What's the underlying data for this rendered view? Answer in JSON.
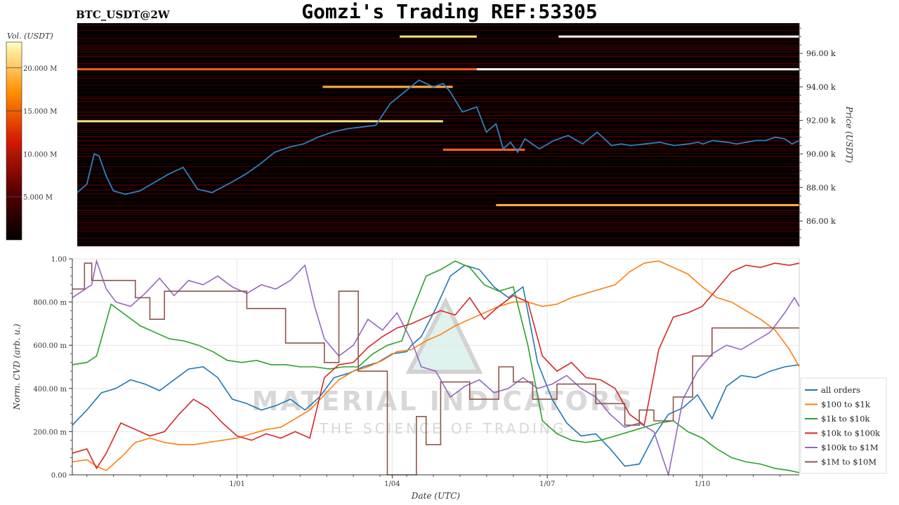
{
  "header": {
    "title": "Gomzi's Trading REF:53305",
    "ticker": "BTC_USDT@2W"
  },
  "colors": {
    "heatmap_bg": "#000000",
    "price_line": "#2f7fc1",
    "grid": "#e6e6e6"
  },
  "watermark": {
    "line1": "MATERIAL INDICATORS",
    "line2": "THE SCIENCE OF TRADING"
  },
  "chart_data": [
    {
      "type": "heatmap",
      "ylabel": "Price (USDT)",
      "ylim": [
        84500,
        97800
      ],
      "yticks": [
        86000,
        88000,
        90000,
        92000,
        94000,
        96000
      ],
      "ytick_labels": [
        "86.00 k",
        "88.00 k",
        "90.00 k",
        "92.00 k",
        "94.00 k",
        "96.00 k"
      ],
      "colorbar": {
        "label": "Vol. (USDT)",
        "range": [
          0,
          23000000
        ],
        "ticks": [
          5000000,
          10000000,
          15000000,
          20000000
        ],
        "tick_labels": [
          "5.000 M",
          "10.000 M",
          "15.000 M",
          "20.000 M"
        ]
      },
      "bright_levels": [
        {
          "price": 97000,
          "from_day": 10.0,
          "to_day": 15.0,
          "intensity": 1.0
        },
        {
          "price": 97000,
          "from_day": 6.7,
          "to_day": 8.3,
          "intensity": 0.9
        },
        {
          "price": 95050,
          "from_day": 0.0,
          "to_day": 15.0,
          "intensity": 0.55
        },
        {
          "price": 95050,
          "from_day": 8.3,
          "to_day": 15.0,
          "intensity": 1.0
        },
        {
          "price": 94000,
          "from_day": 5.1,
          "to_day": 7.8,
          "intensity": 0.75
        },
        {
          "price": 91950,
          "from_day": 0.0,
          "to_day": 7.6,
          "intensity": 0.85
        },
        {
          "price": 90250,
          "from_day": 7.6,
          "to_day": 9.3,
          "intensity": 0.6
        },
        {
          "price": 86950,
          "from_day": 8.7,
          "to_day": 15.0,
          "intensity": 0.75
        }
      ],
      "price_series": {
        "name": "BTC price",
        "x_days": [
          0,
          0.2,
          0.35,
          0.45,
          0.6,
          0.75,
          1.0,
          1.3,
          1.6,
          1.9,
          2.2,
          2.5,
          2.8,
          3.0,
          3.2,
          3.5,
          3.8,
          4.1,
          4.4,
          4.7,
          5.0,
          5.3,
          5.6,
          5.9,
          6.2,
          6.5,
          6.8,
          7.1,
          7.4,
          7.6,
          7.75,
          8.0,
          8.3,
          8.5,
          8.7,
          8.85,
          9.0,
          9.15,
          9.3,
          9.6,
          9.9,
          10.2,
          10.5,
          10.8,
          11.1,
          11.3,
          11.5,
          11.8,
          12.1,
          12.4,
          12.7,
          12.9,
          13.0,
          13.2,
          13.5,
          13.7,
          13.9,
          14.1,
          14.3,
          14.5,
          14.7,
          14.85,
          15.0
        ],
        "price": [
          87700,
          88200,
          90000,
          89900,
          88700,
          87800,
          87600,
          87800,
          88300,
          88800,
          89200,
          87900,
          87700,
          88000,
          88300,
          88800,
          89400,
          90100,
          90400,
          90600,
          91000,
          91300,
          91500,
          91600,
          91700,
          93000,
          93700,
          94400,
          94000,
          94200,
          93700,
          92500,
          92800,
          91300,
          91800,
          90300,
          90700,
          90100,
          90900,
          90300,
          90800,
          91100,
          90600,
          91300,
          90500,
          90600,
          90500,
          90600,
          90700,
          90500,
          90600,
          90700,
          90600,
          90800,
          90700,
          90600,
          90700,
          90800,
          90800,
          91000,
          90900,
          90600,
          90800
        ]
      }
    },
    {
      "type": "line",
      "xlabel": "Date (UTC)",
      "ylabel": "Norm. CVD (arb. u.)",
      "ylim": [
        0,
        1
      ],
      "yticks": [
        0,
        0.2,
        0.4,
        0.6,
        0.8,
        1.0
      ],
      "ytick_labels": [
        "0.00",
        "200.00 m",
        "400.00 m",
        "600.00 m",
        "800.00 m",
        "1.00"
      ],
      "xlim": [
        0,
        15
      ],
      "xticks": [
        3.4,
        6.6,
        9.8,
        13.0
      ],
      "xtick_labels": [
        "1/01",
        "1/04",
        "1/07",
        "1/10"
      ],
      "legend_position": "right",
      "series": [
        {
          "name": "all orders",
          "color": "#1f77b4",
          "x": [
            0,
            0.3,
            0.6,
            0.9,
            1.2,
            1.5,
            1.8,
            2.1,
            2.4,
            2.7,
            3.0,
            3.3,
            3.6,
            3.9,
            4.2,
            4.5,
            4.8,
            5.1,
            5.4,
            5.7,
            6.0,
            6.3,
            6.6,
            6.9,
            7.0,
            7.2,
            7.5,
            7.8,
            8.1,
            8.4,
            8.7,
            9.0,
            9.3,
            9.6,
            9.9,
            10.2,
            10.5,
            10.8,
            11.1,
            11.4,
            11.7,
            12.0,
            12.3,
            12.6,
            12.9,
            13.2,
            13.5,
            13.8,
            14.1,
            14.4,
            14.7,
            15.0
          ],
          "y": [
            0.23,
            0.3,
            0.38,
            0.4,
            0.44,
            0.42,
            0.39,
            0.44,
            0.49,
            0.5,
            0.45,
            0.35,
            0.33,
            0.3,
            0.32,
            0.35,
            0.3,
            0.36,
            0.45,
            0.47,
            0.5,
            0.52,
            0.56,
            0.57,
            0.6,
            0.64,
            0.77,
            0.92,
            0.97,
            0.95,
            0.87,
            0.82,
            0.87,
            0.52,
            0.35,
            0.24,
            0.18,
            0.19,
            0.12,
            0.04,
            0.05,
            0.18,
            0.28,
            0.31,
            0.37,
            0.26,
            0.41,
            0.46,
            0.45,
            0.48,
            0.5,
            0.51
          ]
        },
        {
          "name": "$100 to $1k",
          "color": "#ff7f0e",
          "x": [
            0,
            0.3,
            0.5,
            0.7,
            1.0,
            1.3,
            1.6,
            1.9,
            2.2,
            2.5,
            2.8,
            3.1,
            3.4,
            3.7,
            4.0,
            4.3,
            4.6,
            4.9,
            5.2,
            5.5,
            5.8,
            6.1,
            6.4,
            6.7,
            7.0,
            7.3,
            7.6,
            7.9,
            8.2,
            8.5,
            8.8,
            9.1,
            9.4,
            9.7,
            10.0,
            10.3,
            10.6,
            10.9,
            11.2,
            11.5,
            11.8,
            12.1,
            12.4,
            12.7,
            13.0,
            13.3,
            13.6,
            13.9,
            14.2,
            14.5,
            14.8,
            15.0
          ],
          "y": [
            0.06,
            0.07,
            0.04,
            0.02,
            0.08,
            0.15,
            0.17,
            0.15,
            0.14,
            0.14,
            0.15,
            0.16,
            0.17,
            0.19,
            0.21,
            0.22,
            0.26,
            0.3,
            0.37,
            0.44,
            0.48,
            0.5,
            0.53,
            0.57,
            0.58,
            0.62,
            0.65,
            0.69,
            0.72,
            0.75,
            0.78,
            0.8,
            0.8,
            0.78,
            0.79,
            0.82,
            0.84,
            0.86,
            0.88,
            0.94,
            0.98,
            0.99,
            0.96,
            0.93,
            0.87,
            0.82,
            0.8,
            0.76,
            0.72,
            0.67,
            0.58,
            0.5
          ]
        },
        {
          "name": "$1k to $10k",
          "color": "#2ca02c",
          "x": [
            0,
            0.3,
            0.5,
            0.6,
            0.8,
            1.1,
            1.4,
            1.7,
            2.0,
            2.3,
            2.6,
            2.9,
            3.2,
            3.5,
            3.8,
            4.1,
            4.4,
            4.7,
            5.0,
            5.3,
            5.6,
            5.9,
            6.2,
            6.5,
            6.8,
            7.0,
            7.3,
            7.6,
            7.9,
            8.2,
            8.5,
            8.8,
            9.1,
            9.4,
            9.7,
            10.0,
            10.3,
            10.6,
            10.9,
            11.2,
            11.5,
            11.8,
            12.1,
            12.4,
            12.7,
            13.0,
            13.3,
            13.6,
            13.9,
            14.2,
            14.5,
            14.8,
            15.0
          ],
          "y": [
            0.51,
            0.52,
            0.55,
            0.63,
            0.79,
            0.74,
            0.69,
            0.66,
            0.63,
            0.62,
            0.6,
            0.57,
            0.53,
            0.52,
            0.53,
            0.51,
            0.51,
            0.5,
            0.5,
            0.49,
            0.5,
            0.5,
            0.56,
            0.6,
            0.62,
            0.75,
            0.92,
            0.95,
            0.99,
            0.96,
            0.88,
            0.85,
            0.87,
            0.6,
            0.25,
            0.19,
            0.16,
            0.15,
            0.16,
            0.18,
            0.2,
            0.22,
            0.24,
            0.25,
            0.2,
            0.17,
            0.12,
            0.08,
            0.06,
            0.05,
            0.03,
            0.02,
            0.01
          ]
        },
        {
          "name": "$10k to $100k",
          "color": "#d62728",
          "x": [
            0,
            0.3,
            0.5,
            0.7,
            1.0,
            1.3,
            1.6,
            1.9,
            2.2,
            2.5,
            2.8,
            3.1,
            3.4,
            3.7,
            4.0,
            4.3,
            4.6,
            4.9,
            5.2,
            5.5,
            5.8,
            6.1,
            6.4,
            6.7,
            7.0,
            7.3,
            7.6,
            7.9,
            8.2,
            8.5,
            8.8,
            9.1,
            9.4,
            9.7,
            10.0,
            10.3,
            10.6,
            10.9,
            11.2,
            11.5,
            11.8,
            12.1,
            12.4,
            12.7,
            13.0,
            13.3,
            13.6,
            13.9,
            14.2,
            14.5,
            14.8,
            15.0
          ],
          "y": [
            0.1,
            0.12,
            0.03,
            0.1,
            0.24,
            0.21,
            0.18,
            0.2,
            0.28,
            0.35,
            0.31,
            0.24,
            0.18,
            0.16,
            0.19,
            0.17,
            0.2,
            0.17,
            0.45,
            0.51,
            0.52,
            0.59,
            0.64,
            0.68,
            0.7,
            0.73,
            0.76,
            0.74,
            0.82,
            0.72,
            0.78,
            0.83,
            0.8,
            0.55,
            0.48,
            0.52,
            0.45,
            0.44,
            0.4,
            0.28,
            0.23,
            0.58,
            0.73,
            0.75,
            0.78,
            0.86,
            0.94,
            0.97,
            0.96,
            0.98,
            0.97,
            0.98
          ]
        },
        {
          "name": "$100k to $1M",
          "color": "#9467bd",
          "x": [
            0,
            0.2,
            0.4,
            0.5,
            0.7,
            0.9,
            1.2,
            1.5,
            1.8,
            2.1,
            2.4,
            2.7,
            3.0,
            3.3,
            3.6,
            3.9,
            4.2,
            4.5,
            4.8,
            5.0,
            5.2,
            5.5,
            5.8,
            6.1,
            6.4,
            6.7,
            7.0,
            7.2,
            7.5,
            7.8,
            8.1,
            8.4,
            8.7,
            9.0,
            9.3,
            9.6,
            9.9,
            10.2,
            10.5,
            10.8,
            11.1,
            11.4,
            11.7,
            12.0,
            12.3,
            12.6,
            12.9,
            13.2,
            13.5,
            13.8,
            14.1,
            14.4,
            14.7,
            14.9,
            15.0
          ],
          "y": [
            0.82,
            0.85,
            0.88,
            0.99,
            0.86,
            0.8,
            0.78,
            0.84,
            0.91,
            0.83,
            0.9,
            0.88,
            0.92,
            0.87,
            0.84,
            0.88,
            0.86,
            0.9,
            0.97,
            0.78,
            0.63,
            0.55,
            0.6,
            0.72,
            0.67,
            0.75,
            0.62,
            0.5,
            0.48,
            0.36,
            0.41,
            0.44,
            0.38,
            0.4,
            0.45,
            0.4,
            0.42,
            0.46,
            0.4,
            0.36,
            0.28,
            0.22,
            0.24,
            0.2,
            0.0,
            0.35,
            0.48,
            0.56,
            0.6,
            0.58,
            0.62,
            0.66,
            0.75,
            0.82,
            0.78
          ]
        },
        {
          "name": "$1M to $10M",
          "color": "#8c564b",
          "x": [
            0,
            0.25,
            0.25,
            0.4,
            0.4,
            1.3,
            1.3,
            1.6,
            1.6,
            1.9,
            1.9,
            3.6,
            3.6,
            4.4,
            4.4,
            5.2,
            5.2,
            5.5,
            5.5,
            5.9,
            5.9,
            6.5,
            6.5,
            7.1,
            7.1,
            7.3,
            7.3,
            7.6,
            7.6,
            8.2,
            8.2,
            8.8,
            8.8,
            9.1,
            9.1,
            9.5,
            9.5,
            10.0,
            10.0,
            10.8,
            10.8,
            11.4,
            11.4,
            11.7,
            11.7,
            12.0,
            12.0,
            12.4,
            12.4,
            12.8,
            12.8,
            13.2,
            13.2,
            15.0
          ],
          "y": [
            0.86,
            0.86,
            0.98,
            0.98,
            0.9,
            0.9,
            0.82,
            0.82,
            0.72,
            0.72,
            0.85,
            0.85,
            0.77,
            0.77,
            0.61,
            0.61,
            0.52,
            0.52,
            0.85,
            0.85,
            0.48,
            0.48,
            0.0,
            0.0,
            0.27,
            0.27,
            0.14,
            0.14,
            0.43,
            0.43,
            0.35,
            0.35,
            0.5,
            0.5,
            0.43,
            0.43,
            0.35,
            0.35,
            0.42,
            0.42,
            0.33,
            0.33,
            0.23,
            0.23,
            0.3,
            0.3,
            0.25,
            0.25,
            0.36,
            0.36,
            0.55,
            0.55,
            0.68,
            0.68
          ]
        }
      ]
    }
  ]
}
